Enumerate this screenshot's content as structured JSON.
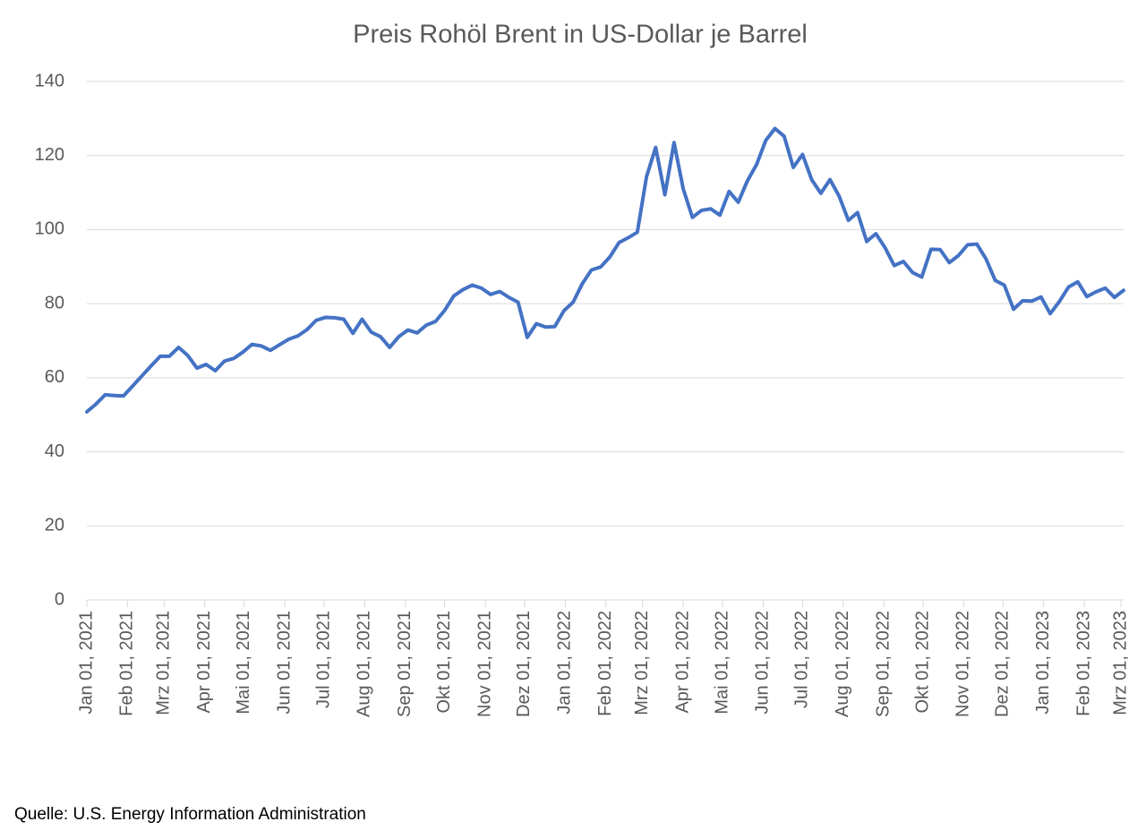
{
  "chart_data": {
    "type": "line",
    "title": "Preis Rohöl Brent in US-Dollar je Barrel",
    "source": "Quelle: U.S. Energy Information Administration",
    "x": [
      "2021-01-01",
      "2021-01-08",
      "2021-01-15",
      "2021-01-22",
      "2021-01-29",
      "2021-02-05",
      "2021-02-12",
      "2021-02-19",
      "2021-02-26",
      "2021-03-05",
      "2021-03-12",
      "2021-03-19",
      "2021-03-26",
      "2021-04-02",
      "2021-04-09",
      "2021-04-16",
      "2021-04-23",
      "2021-04-30",
      "2021-05-07",
      "2021-05-14",
      "2021-05-21",
      "2021-05-28",
      "2021-06-04",
      "2021-06-11",
      "2021-06-18",
      "2021-06-25",
      "2021-07-02",
      "2021-07-09",
      "2021-07-16",
      "2021-07-23",
      "2021-07-30",
      "2021-08-06",
      "2021-08-13",
      "2021-08-20",
      "2021-08-27",
      "2021-09-03",
      "2021-09-10",
      "2021-09-17",
      "2021-09-24",
      "2021-10-01",
      "2021-10-08",
      "2021-10-15",
      "2021-10-22",
      "2021-10-29",
      "2021-11-05",
      "2021-11-12",
      "2021-11-19",
      "2021-11-26",
      "2021-12-03",
      "2021-12-10",
      "2021-12-17",
      "2021-12-24",
      "2021-12-31",
      "2022-01-07",
      "2022-01-14",
      "2022-01-21",
      "2022-01-28",
      "2022-02-04",
      "2022-02-11",
      "2022-02-18",
      "2022-02-25",
      "2022-03-04",
      "2022-03-11",
      "2022-03-18",
      "2022-03-25",
      "2022-04-01",
      "2022-04-08",
      "2022-04-15",
      "2022-04-22",
      "2022-04-29",
      "2022-05-06",
      "2022-05-13",
      "2022-05-20",
      "2022-05-27",
      "2022-06-03",
      "2022-06-10",
      "2022-06-17",
      "2022-06-24",
      "2022-07-01",
      "2022-07-08",
      "2022-07-15",
      "2022-07-22",
      "2022-07-29",
      "2022-08-05",
      "2022-08-12",
      "2022-08-19",
      "2022-08-26",
      "2022-09-02",
      "2022-09-09",
      "2022-09-16",
      "2022-09-23",
      "2022-09-30",
      "2022-10-07",
      "2022-10-14",
      "2022-10-21",
      "2022-10-28",
      "2022-11-04",
      "2022-11-11",
      "2022-11-18",
      "2022-11-25",
      "2022-12-02",
      "2022-12-09",
      "2022-12-16",
      "2022-12-23",
      "2022-12-30",
      "2023-01-06",
      "2023-01-13",
      "2023-01-20",
      "2023-01-27",
      "2023-02-03",
      "2023-02-10",
      "2023-02-17",
      "2023-02-24",
      "2023-03-03"
    ],
    "series": [
      {
        "color": "#4472c4",
        "values": [
          50.8,
          52.9,
          55.4,
          55.2,
          55.1,
          57.8,
          60.5,
          63.2,
          65.8,
          65.8,
          68.2,
          66,
          62.6,
          63.6,
          61.9,
          64.5,
          65.2,
          66.9,
          69,
          68.6,
          67.4,
          68.9,
          70.4,
          71.3,
          73,
          75.5,
          76.3,
          76.2,
          75.8,
          72,
          75.8,
          72.3,
          71.1,
          68.2,
          71.1,
          72.9,
          72.1,
          74.2,
          75.2,
          78.2,
          82.1,
          83.8,
          85,
          84.2,
          82.5,
          83.3,
          81.7,
          80.4,
          70.9,
          74.6,
          73.7,
          73.8,
          78.1,
          80.4,
          85.4,
          89.1,
          89.9,
          92.6,
          96.5,
          97.8,
          99.3,
          114.3,
          122.2,
          109.4,
          123.5,
          111,
          103.3,
          105.2,
          105.6,
          103.9,
          110.3,
          107.4,
          113.2,
          117.6,
          124.1,
          127.3,
          125.2,
          116.8,
          120.3,
          113.5,
          109.8,
          113.5,
          109,
          102.5,
          104.6,
          96.8,
          98.9,
          95.1,
          90.3,
          91.4,
          88.4,
          87.2,
          94.7,
          94.6,
          91.1,
          93,
          95.9,
          96.1,
          92.1,
          86.3,
          85,
          78.5,
          80.8,
          80.7,
          81.8,
          77.3,
          80.6,
          84.5,
          85.9,
          81.9,
          83.2,
          84.2,
          81.7,
          83.6
        ]
      }
    ],
    "xlim": [
      "2021-01-01",
      "2023-03-03"
    ],
    "xticks": [
      {
        "value": "2021-01-01",
        "label": "Jan 01, 2021"
      },
      {
        "value": "2021-02-01",
        "label": "Feb 01, 2021"
      },
      {
        "value": "2021-03-01",
        "label": "Mrz 01, 2021"
      },
      {
        "value": "2021-04-01",
        "label": "Apr 01, 2021"
      },
      {
        "value": "2021-05-01",
        "label": "Mai 01, 2021"
      },
      {
        "value": "2021-06-01",
        "label": "Jun 01, 2021"
      },
      {
        "value": "2021-07-01",
        "label": "Jul 01, 2021"
      },
      {
        "value": "2021-08-01",
        "label": "Aug 01, 2021"
      },
      {
        "value": "2021-09-01",
        "label": "Sep 01, 2021"
      },
      {
        "value": "2021-10-01",
        "label": "Okt 01, 2021"
      },
      {
        "value": "2021-11-01",
        "label": "Nov 01, 2021"
      },
      {
        "value": "2021-12-01",
        "label": "Dez 01, 2021"
      },
      {
        "value": "2022-01-01",
        "label": "Jan 01, 2022"
      },
      {
        "value": "2022-02-01",
        "label": "Feb 01, 2022"
      },
      {
        "value": "2022-03-01",
        "label": "Mrz 01, 2022"
      },
      {
        "value": "2022-04-01",
        "label": "Apr 01, 2022"
      },
      {
        "value": "2022-05-01",
        "label": "Mai 01, 2022"
      },
      {
        "value": "2022-06-01",
        "label": "Jun 01, 2022"
      },
      {
        "value": "2022-07-01",
        "label": "Jul 01, 2022"
      },
      {
        "value": "2022-08-01",
        "label": "Aug 01, 2022"
      },
      {
        "value": "2022-09-01",
        "label": "Sep 01, 2022"
      },
      {
        "value": "2022-10-01",
        "label": "Okt 01, 2022"
      },
      {
        "value": "2022-11-01",
        "label": "Nov 01, 2022"
      },
      {
        "value": "2022-12-01",
        "label": "Dez 01, 2022"
      },
      {
        "value": "2023-01-01",
        "label": "Jan 01, 2023"
      },
      {
        "value": "2023-02-01",
        "label": "Feb 01, 2023"
      },
      {
        "value": "2023-03-01",
        "label": "Mrz 01, 2023"
      }
    ],
    "ylim": [
      0,
      140
    ],
    "yticks": [
      0,
      20,
      40,
      60,
      80,
      100,
      120,
      140
    ],
    "grid": true
  }
}
